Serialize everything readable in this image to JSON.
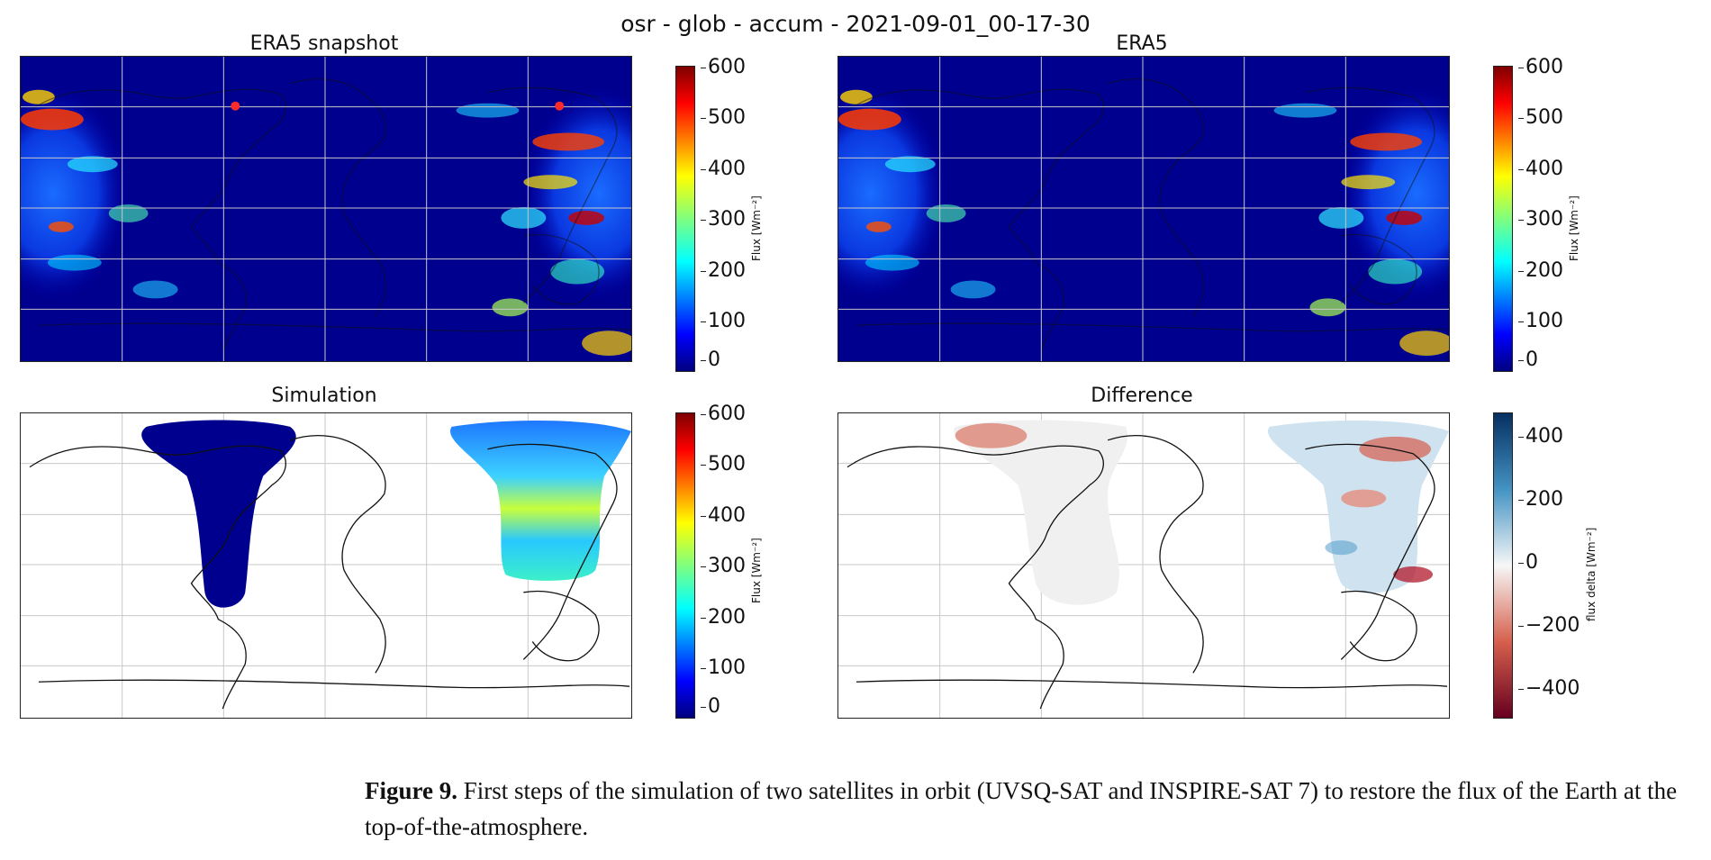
{
  "figure": {
    "suptitle": "osr - glob - accum - 2021-09-01_00-17-30",
    "caption_label": "Figure 9.",
    "caption_text": "First steps of the simulation of two satellites in orbit (UVSQ-SAT and INSPIRE-SAT 7) to restore the flux of the Earth at the top-of-the-atmosphere.",
    "flux_colorbar": {
      "label": "Flux [Wm⁻²]",
      "ticks": [
        "600",
        "500",
        "400",
        "300",
        "200",
        "100",
        "0"
      ],
      "range": [
        0,
        600
      ],
      "colormap": "jet"
    },
    "delta_colorbar": {
      "label": "flux delta [Wm⁻²]",
      "ticks": [
        "400",
        "200",
        "0",
        "−200",
        "−400"
      ],
      "range": [
        -500,
        500
      ],
      "colormap": "RdBu"
    }
  },
  "panels": {
    "p1": {
      "title": "ERA5 snapshot"
    },
    "p2": {
      "title": "ERA5"
    },
    "p3": {
      "title": "Simulation"
    },
    "p4": {
      "title": "Difference"
    }
  },
  "colors": {
    "dark_blue": "#00008f",
    "red_marker": "#ff2a2a",
    "coast": "#111111",
    "grid": "#c8c8c8"
  }
}
